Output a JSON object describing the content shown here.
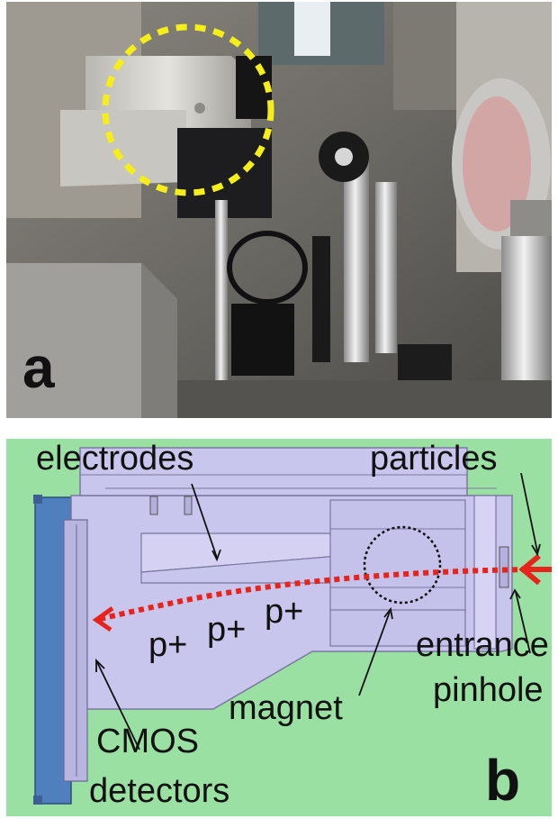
{
  "panel_a": {
    "letter": "a"
  },
  "panel_b": {
    "letter": "b",
    "labels": {
      "electrodes": "electrodes",
      "particles": "particles",
      "entrance": "entrance",
      "pinhole": "pinhole",
      "magnet": "magnet",
      "cmos": "CMOS",
      "detectors": "detectors",
      "protons": [
        "p+",
        "p+",
        "p+"
      ]
    },
    "colors": {
      "background": "#9be0a3",
      "chamber": "#c9c6ee",
      "detector_plate": "#4f7fbd",
      "trajectory": "#e8231c"
    }
  }
}
